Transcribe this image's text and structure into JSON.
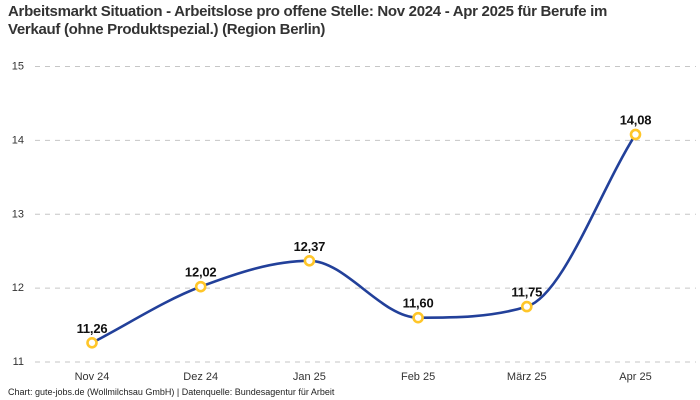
{
  "chart_data": {
    "type": "line",
    "title": "Arbeitsmarkt Situation - Arbeitslose pro offene Stelle: Nov 2024 - Apr 2025 für Berufe im Verkauf (ohne Produktspezial.) (Region Berlin)",
    "categories": [
      "Nov 24",
      "Dez 24",
      "Jan 25",
      "Feb 25",
      "März 25",
      "Apr 25"
    ],
    "values": [
      11.26,
      12.02,
      12.37,
      11.6,
      11.75,
      14.08
    ],
    "point_labels": [
      "11,26",
      "12,02",
      "12,37",
      "11,60",
      "11,75",
      "14,08"
    ],
    "y_ticks": [
      "11",
      "12",
      "13",
      "14",
      "15"
    ],
    "ylim": [
      11,
      15
    ],
    "xlabel": "",
    "ylabel": "",
    "legend": "none",
    "grid": "horizontal-dashed",
    "line_style": "smooth",
    "marker": "open-circle",
    "decimal_separator": ","
  },
  "footer": {
    "text": "Chart: gute-jobs.de (Wollmilchsau GmbH) | Datenquelle: Bundesagentur für Arbeit"
  },
  "colors": {
    "line": "#22409a",
    "marker": "#ffc629",
    "marker_fill": "#ffffff",
    "grid": "#c6c6c6",
    "title": "#333333",
    "ticks": "#333333",
    "point_labels": "#111111",
    "background": "#ffffff"
  }
}
